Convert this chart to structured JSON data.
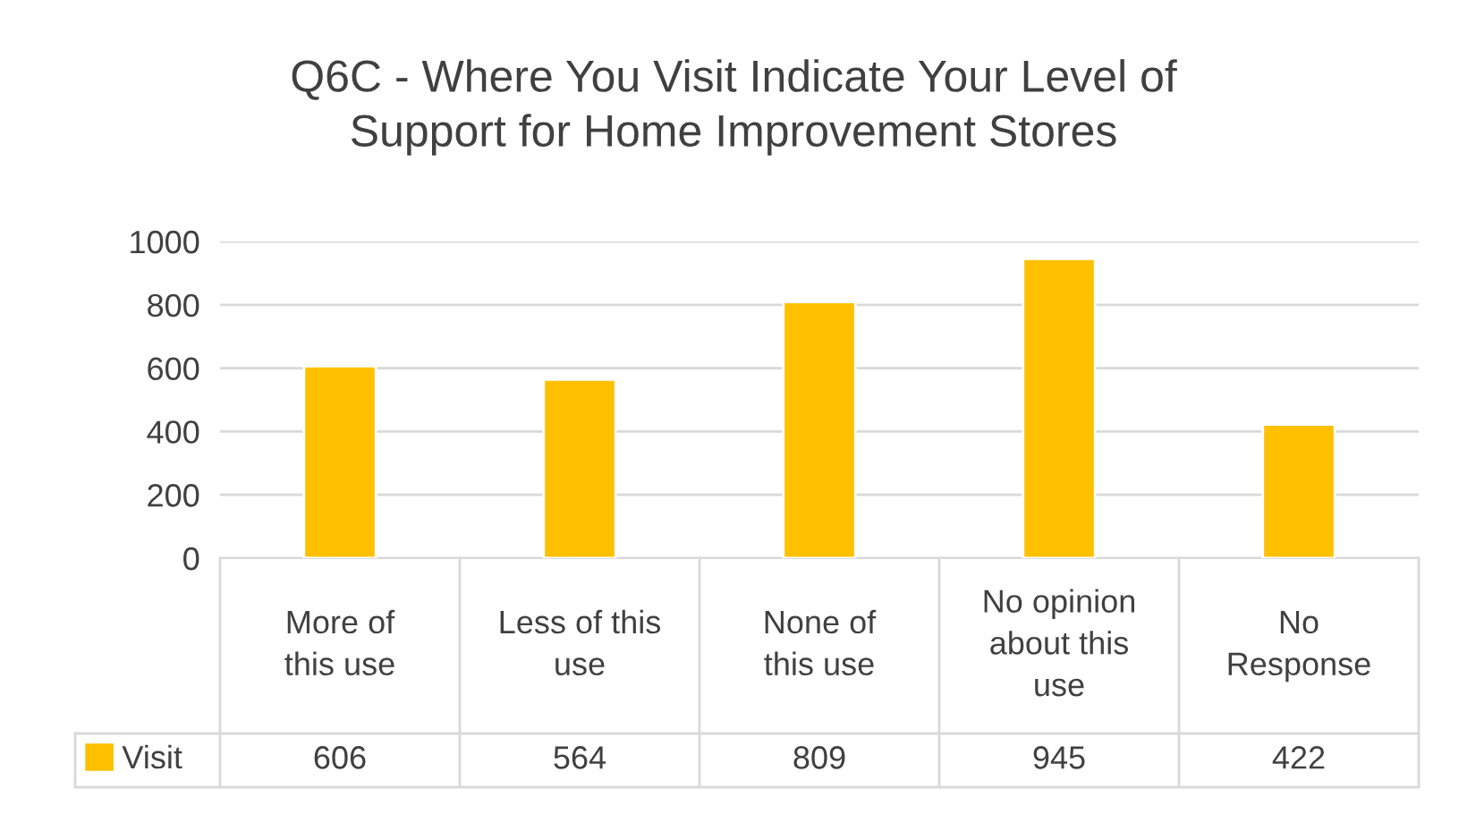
{
  "chart_data": {
    "type": "bar",
    "title": "Q6C - Where You Visit Indicate Your Level of\nSupport for Home Improvement Stores",
    "categories": [
      "More of\nthis use",
      "Less of this\nuse",
      "None of\nthis use",
      "No opinion\nabout this\nuse",
      "No\nResponse"
    ],
    "series": [
      {
        "name": "Visit",
        "color": "#ffc000",
        "values": [
          606,
          564,
          809,
          945,
          422
        ]
      }
    ],
    "ylim": [
      0,
      1000
    ],
    "yticks": [
      0,
      200,
      400,
      600,
      800,
      1000
    ],
    "grid": "y",
    "legend": "bottom",
    "data_labels": true
  }
}
